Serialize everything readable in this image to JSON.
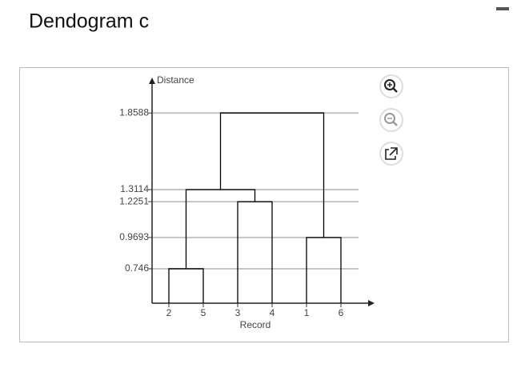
{
  "chart_data": {
    "type": "dendrogram",
    "title": "Dendogram c",
    "ylabel": "Distance",
    "xlabel": "Record",
    "categories": [
      "2",
      "5",
      "3",
      "4",
      "1",
      "6"
    ],
    "tree": {
      "height": 1.8588,
      "children": [
        {
          "height": 1.3114,
          "children": [
            {
              "height": 0.746,
              "children": [
                "2",
                "5"
              ]
            },
            {
              "height": 1.2251,
              "children": [
                "3",
                "4"
              ]
            }
          ]
        },
        {
          "height": 0.9693,
          "children": [
            "1",
            "6"
          ]
        }
      ]
    },
    "ylim": [
      0.5,
      2.1
    ],
    "yticks": [
      0.746,
      0.9693,
      1.2251,
      1.3114,
      1.8588
    ],
    "grid": true,
    "color": "#000000"
  }
}
